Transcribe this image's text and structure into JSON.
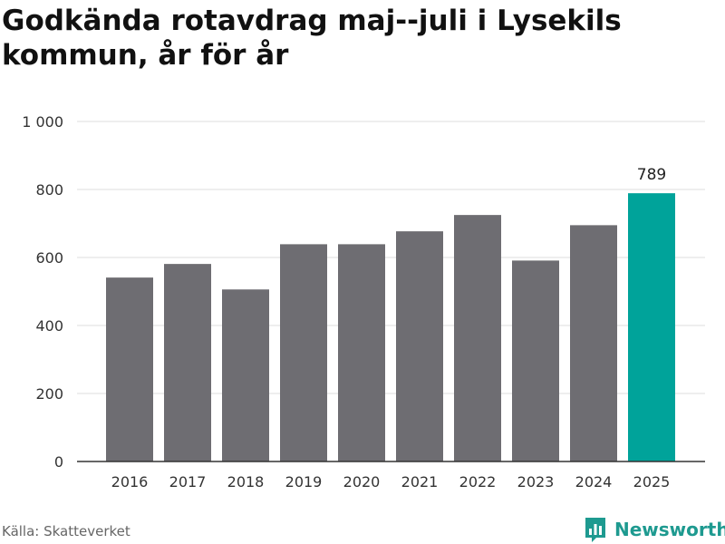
{
  "title": "Godkända rotavdrag maj--juli i Lysekils kommun, år för år",
  "source": "Källa: Skatteverket",
  "brand": {
    "name": "Newsworthy",
    "icon": "newsworthy-logo-icon"
  },
  "colors": {
    "bar": "#6e6d72",
    "highlight": "#00a39a",
    "grid": "#dddddd",
    "axis": "#333333"
  },
  "chart_data": {
    "type": "bar",
    "title": "Godkända rotavdrag maj--juli i Lysekils kommun, år för år",
    "categories": [
      "2016",
      "2017",
      "2018",
      "2019",
      "2020",
      "2021",
      "2022",
      "2023",
      "2024",
      "2025"
    ],
    "values": [
      541,
      581,
      506,
      639,
      639,
      677,
      725,
      591,
      695,
      789
    ],
    "highlight_index": 9,
    "data_labels": [
      {
        "index": 9,
        "text": "789"
      }
    ],
    "ylim": [
      0,
      1000
    ],
    "yticks": [
      0,
      200,
      400,
      600,
      800,
      1000
    ],
    "ytick_labels": [
      "0",
      "200",
      "400",
      "600",
      "800",
      "1 000"
    ],
    "xlabel": "",
    "ylabel": "",
    "grid": true,
    "legend": "none"
  }
}
